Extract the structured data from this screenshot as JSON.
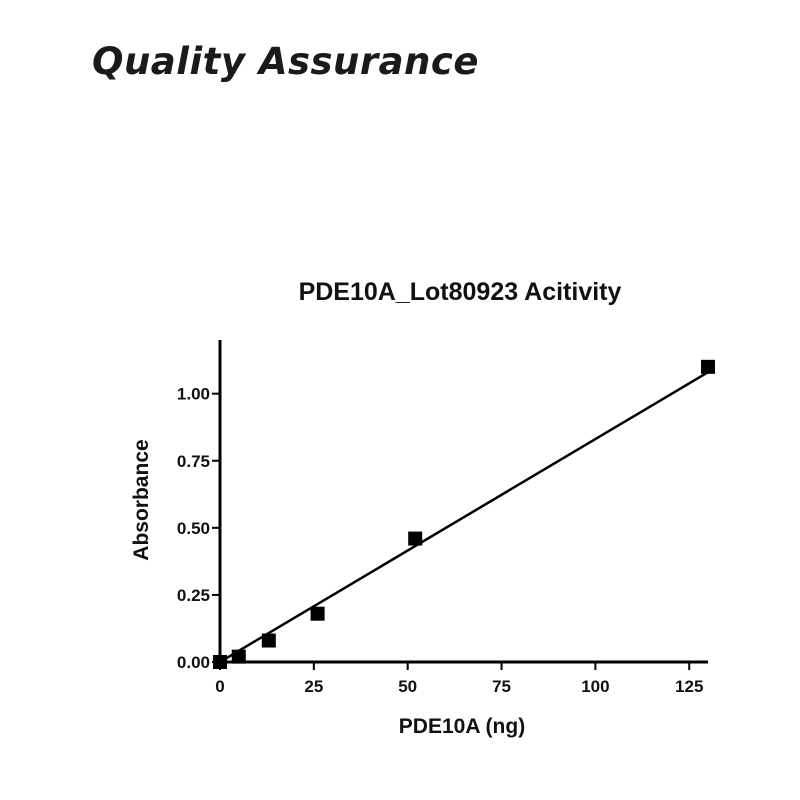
{
  "page": {
    "heading": "Quality Assurance"
  },
  "chart_data": {
    "type": "scatter",
    "title": "PDE10A_Lot80923 Acitivity",
    "xlabel": "PDE10A (ng)",
    "ylabel": "Absorbance",
    "xlim": [
      0,
      130
    ],
    "ylim": [
      0,
      1.2
    ],
    "xticks": [
      0,
      25,
      50,
      75,
      100,
      125
    ],
    "xtick_labels": [
      "0",
      "25",
      "50",
      "75",
      "100",
      "125"
    ],
    "yticks": [
      0,
      0.25,
      0.5,
      0.75,
      1.0
    ],
    "ytick_labels": [
      "0.00",
      "0.25",
      "0.50",
      "0.75",
      "1.00"
    ],
    "grid": false,
    "series": [
      {
        "x": [
          0,
          5,
          13,
          26,
          52,
          130
        ],
        "y": [
          0.0,
          0.02,
          0.08,
          0.18,
          0.46,
          1.1
        ],
        "marker": "square",
        "color": "#000000"
      }
    ],
    "fit_line": {
      "x": [
        0,
        130
      ],
      "y": [
        0.0,
        1.08
      ],
      "color": "#000000"
    }
  }
}
